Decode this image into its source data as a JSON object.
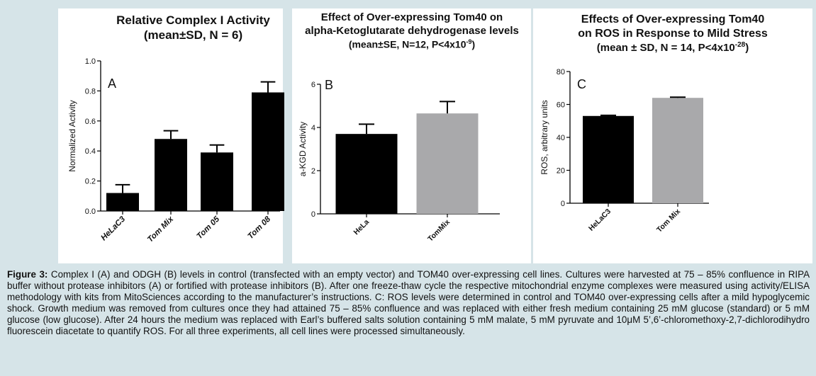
{
  "chart_data": [
    {
      "type": "bar",
      "panel": "A",
      "title_line1": "Relative Complex I Activity",
      "title_line2": "(mean±SD, N = 6)",
      "ylabel": "Normalized Activity",
      "ylim": [
        0,
        1.0
      ],
      "yticks": [
        "0.0",
        "0.2",
        "0.4",
        "0.6",
        "0.8",
        "1.0"
      ],
      "categories": [
        "HeLaC3",
        "Tom Mix",
        "Tom 05",
        "Tom 08"
      ],
      "values": [
        0.12,
        0.48,
        0.39,
        0.79
      ],
      "errors": [
        0.055,
        0.055,
        0.05,
        0.07
      ],
      "color": "#000000"
    },
    {
      "type": "bar",
      "panel": "B",
      "title_line1": "Effect of Over-expressing Tom40 on",
      "title_line2": "alpha-Ketoglutarate dehydrogenase levels",
      "title_line3": "(mean±SE, N=12, P<4x10",
      "title_line3_sup": "-9",
      "title_line3_end": ")",
      "ylabel": "a-KGD Activity",
      "ylim": [
        0,
        6
      ],
      "yticks": [
        "0",
        "2",
        "4",
        "6"
      ],
      "categories": [
        "HeLa",
        "TomMix"
      ],
      "values": [
        3.7,
        4.65
      ],
      "errors": [
        0.45,
        0.55
      ],
      "colors": [
        "#000000",
        "#a9a9ab"
      ]
    },
    {
      "type": "bar",
      "panel": "C",
      "title_line1": "Effects of Over-expressing Tom40",
      "title_line2": "on ROS in Response to Mild Stress",
      "title_line3": "(mean ± SD, N = 14, P<4x10",
      "title_line3_sup": "-28",
      "title_line3_end": ")",
      "ylabel": "ROS, arbitrary units",
      "ylim": [
        0,
        80
      ],
      "yticks": [
        "0",
        "20",
        "40",
        "60",
        "80"
      ],
      "categories": [
        "HeLaC3",
        "Tom Mix"
      ],
      "values": [
        53,
        64
      ],
      "errors": [
        0.4,
        0.4
      ],
      "colors": [
        "#000000",
        "#a9a9ab"
      ]
    }
  ],
  "caption": {
    "label": "Figure 3:",
    "text": " Complex I (A) and ODGH (B) levels in control (transfected with an empty vector) and TOM40 over-expressing cell lines. Cultures were harvested at 75 – 85% confluence in RIPA buffer without protease inhibitors (A) or fortified with protease inhibitors (B). After one freeze-thaw cycle the respective mitochondrial enzyme complexes were measured using activity/ELISA methodology with kits from MitoSciences according to the manufacturer’s instructions. C: ROS levels were determined in control and TOM40 over-expressing cells after a mild hypoglycemic shock. Growth medium was removed from cultures once they had attained 75 – 85% confluence and was replaced with either fresh medium containing 25 mM glucose (standard) or 5 mM glucose (low glucose). After 24 hours the medium was replaced with Earl’s buffered salts solution containing 5 mM malate, 5 mM pyruvate and 10μM 5’,6’-chloromethoxy-2,7-dichlorodihydro fluorescein diacetate to quantify ROS. For all three experiments, all cell lines were processed simultaneously."
  }
}
